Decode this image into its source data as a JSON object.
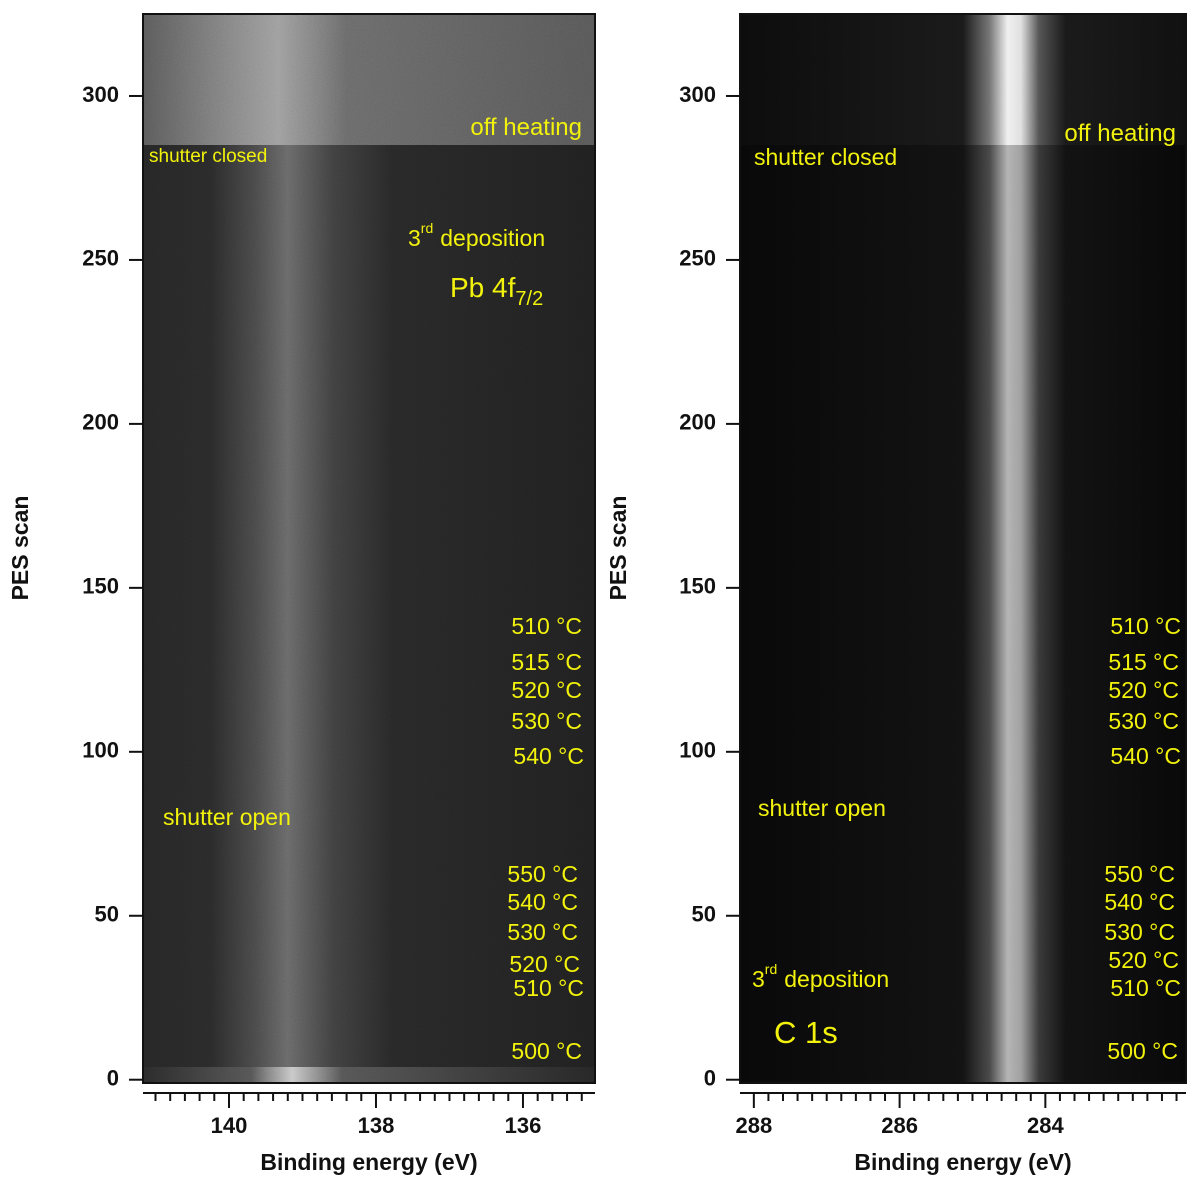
{
  "chart_data": [
    {
      "type": "heatmap",
      "xlabel": "Binding energy (eV)",
      "ylabel": "PES scan",
      "xlim": [
        141.17,
        135.02
      ],
      "ylim": [
        -1,
        325
      ],
      "xticks": [
        140,
        138,
        136
      ],
      "yticks": [
        0,
        50,
        100,
        150,
        200,
        250,
        300
      ],
      "xminorticks": [
        141.0,
        140.8,
        140.6,
        140.4,
        140.2,
        139.8,
        139.6,
        139.4,
        139.2,
        139.0,
        138.8,
        138.6,
        138.4,
        138.2,
        137.8,
        137.6,
        137.4,
        137.2,
        137.0,
        136.8,
        136.6,
        136.4,
        136.2,
        135.8,
        135.6,
        135.4,
        135.2
      ],
      "annotation_color": "#f2f20c",
      "annotations": [
        {
          "text": "off heating"
        },
        {
          "text": "shutter closed"
        },
        {
          "text": "3",
          "sup": "rd",
          "rest": "deposition"
        },
        {
          "text": "Pb 4f",
          "sub": "7/2"
        },
        {
          "text": "510 °C"
        },
        {
          "text": "515 °C"
        },
        {
          "text": "520 °C"
        },
        {
          "text": "530 °C"
        },
        {
          "text": "540 °C"
        },
        {
          "text": "shutter open"
        },
        {
          "text": "550 °C"
        },
        {
          "text": "540 °C"
        },
        {
          "text": "530 °C"
        },
        {
          "text": "520 °C"
        },
        {
          "text": "510 °C"
        },
        {
          "text": "500 °C"
        }
      ]
    },
    {
      "type": "heatmap",
      "xlabel": "Binding energy (eV)",
      "ylabel": "PES scan",
      "xlim": [
        288.19,
        282.07
      ],
      "ylim": [
        -1,
        325
      ],
      "xticks": [
        288,
        286,
        284
      ],
      "yticks": [
        0,
        50,
        100,
        150,
        200,
        250,
        300
      ],
      "xminorticks": [
        287.8,
        287.6,
        287.4,
        287.2,
        287.0,
        286.8,
        286.6,
        286.4,
        286.2,
        285.8,
        285.6,
        285.4,
        285.2,
        285.0,
        284.8,
        284.6,
        284.4,
        284.2,
        283.8,
        283.6,
        283.4,
        283.2,
        283.0,
        282.8,
        282.6,
        282.4,
        282.2
      ],
      "annotation_color": "#f2f20c",
      "annotations": [
        {
          "text": "off heating"
        },
        {
          "text": "shutter closed"
        },
        {
          "text": "510 °C"
        },
        {
          "text": "515 °C"
        },
        {
          "text": "520 °C"
        },
        {
          "text": "530 °C"
        },
        {
          "text": "540 °C"
        },
        {
          "text": "shutter open"
        },
        {
          "text": "550 °C"
        },
        {
          "text": "540 °C"
        },
        {
          "text": "530 °C"
        },
        {
          "text": "520 °C"
        },
        {
          "text": "510 °C"
        },
        {
          "text": "500 °C"
        },
        {
          "text": "3",
          "sup": "rd",
          "rest": "deposition"
        },
        {
          "text": "C 1s"
        }
      ]
    }
  ]
}
